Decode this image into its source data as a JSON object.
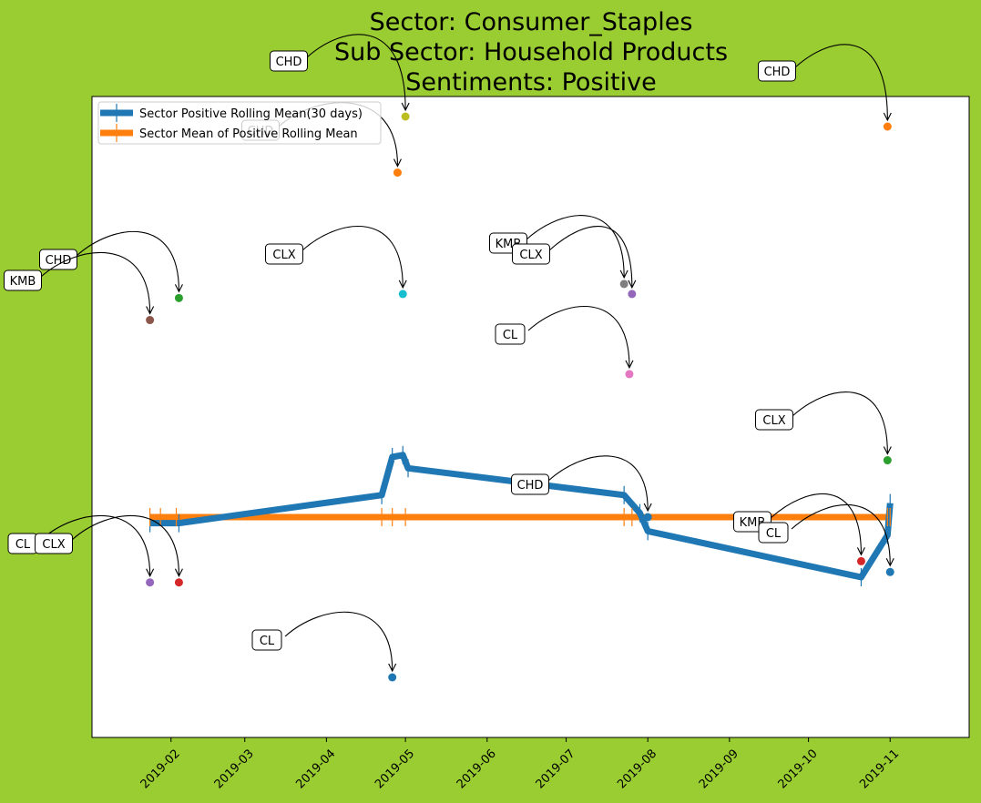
{
  "page": {
    "background": "#9acd32"
  },
  "chart_data": {
    "type": "line",
    "title_lines": [
      "Sector:  Consumer_Staples",
      "Sub Sector:  Household Products",
      "Sentiments:  Positive"
    ],
    "x_ticks": [
      "2019-02",
      "2019-03",
      "2019-04",
      "2019-05",
      "2019-06",
      "2019-07",
      "2019-08",
      "2019-09",
      "2019-10",
      "2019-11"
    ],
    "x_tick_dates": [
      "2019-02-01",
      "2019-03-01",
      "2019-04-01",
      "2019-05-01",
      "2019-06-01",
      "2019-07-01",
      "2019-08-01",
      "2019-09-01",
      "2019-10-01",
      "2019-11-01"
    ],
    "x_range": [
      "2019-01-02",
      "2019-12-01"
    ],
    "y_range": [
      -0.55,
      1.05
    ],
    "y_axis_visible": false,
    "grid": false,
    "legend": {
      "placement": "upper-left",
      "entries": [
        {
          "label": "Sector Positive Rolling Mean(30 days)",
          "color": "#1f77b4"
        },
        {
          "label": "Sector Mean of Positive Rolling Mean",
          "color": "#ff7f0e"
        }
      ]
    },
    "series": [
      {
        "name": "Sector Positive Rolling Mean(30 days)",
        "color": "#1f77b4",
        "points": [
          {
            "date": "2019-01-24",
            "y": -0.015
          },
          {
            "date": "2019-02-04",
            "y": -0.015
          },
          {
            "date": "2019-04-22",
            "y": 0.055
          },
          {
            "date": "2019-04-26",
            "y": 0.15
          },
          {
            "date": "2019-04-30",
            "y": 0.155
          },
          {
            "date": "2019-05-02",
            "y": 0.122
          },
          {
            "date": "2019-07-23",
            "y": 0.055
          },
          {
            "date": "2019-07-29",
            "y": 0.01
          },
          {
            "date": "2019-08-01",
            "y": -0.035
          },
          {
            "date": "2019-10-21",
            "y": -0.15
          },
          {
            "date": "2019-10-31",
            "y": -0.045
          },
          {
            "date": "2019-11-01",
            "y": 0.035
          }
        ]
      },
      {
        "name": "Sector Mean of Positive Rolling Mean",
        "color": "#ff7f0e",
        "points": [
          {
            "date": "2019-01-24",
            "y": 0.0
          },
          {
            "date": "2019-11-01",
            "y": 0.0
          }
        ]
      }
    ],
    "annotations": [
      {
        "label": "CHD",
        "date": "2019-05-01",
        "y": 1.0,
        "color": "#bcbd22"
      },
      {
        "label": "CHD",
        "date": "2019-04-28",
        "y": 0.86,
        "color": "#ff7f0e"
      },
      {
        "label": "CHD",
        "date": "2019-10-31",
        "y": 0.975,
        "color": "#ff7f0e"
      },
      {
        "label": "CHD",
        "date": "2019-02-04",
        "y": 0.547,
        "color": "#2ca02c"
      },
      {
        "label": "KMB",
        "date": "2019-01-24",
        "y": 0.492,
        "color": "#8c564b"
      },
      {
        "label": "CLX",
        "date": "2019-04-30",
        "y": 0.557,
        "color": "#17becf"
      },
      {
        "label": "KMB",
        "date": "2019-07-23",
        "y": 0.582,
        "color": "#7f7f7f"
      },
      {
        "label": "CLX",
        "date": "2019-07-26",
        "y": 0.557,
        "color": "#9467bd"
      },
      {
        "label": "CL",
        "date": "2019-07-25",
        "y": 0.357,
        "color": "#e377c2"
      },
      {
        "label": "CLX",
        "date": "2019-10-31",
        "y": 0.142,
        "color": "#2ca02c"
      },
      {
        "label": "CHD",
        "date": "2019-08-01",
        "y": 0.0,
        "color": "#1f77b4"
      },
      {
        "label": "KMB",
        "date": "2019-10-21",
        "y": -0.11,
        "color": "#d62728"
      },
      {
        "label": "CL",
        "date": "2019-11-01",
        "y": -0.137,
        "color": "#1f77b4"
      },
      {
        "label": "CL",
        "date": "2019-01-24",
        "y": -0.163,
        "color": "#9467bd"
      },
      {
        "label": "CLX",
        "date": "2019-02-04",
        "y": -0.163,
        "color": "#d62728"
      },
      {
        "label": "CL",
        "date": "2019-04-26",
        "y": -0.4,
        "color": "#1f77b4"
      }
    ]
  }
}
